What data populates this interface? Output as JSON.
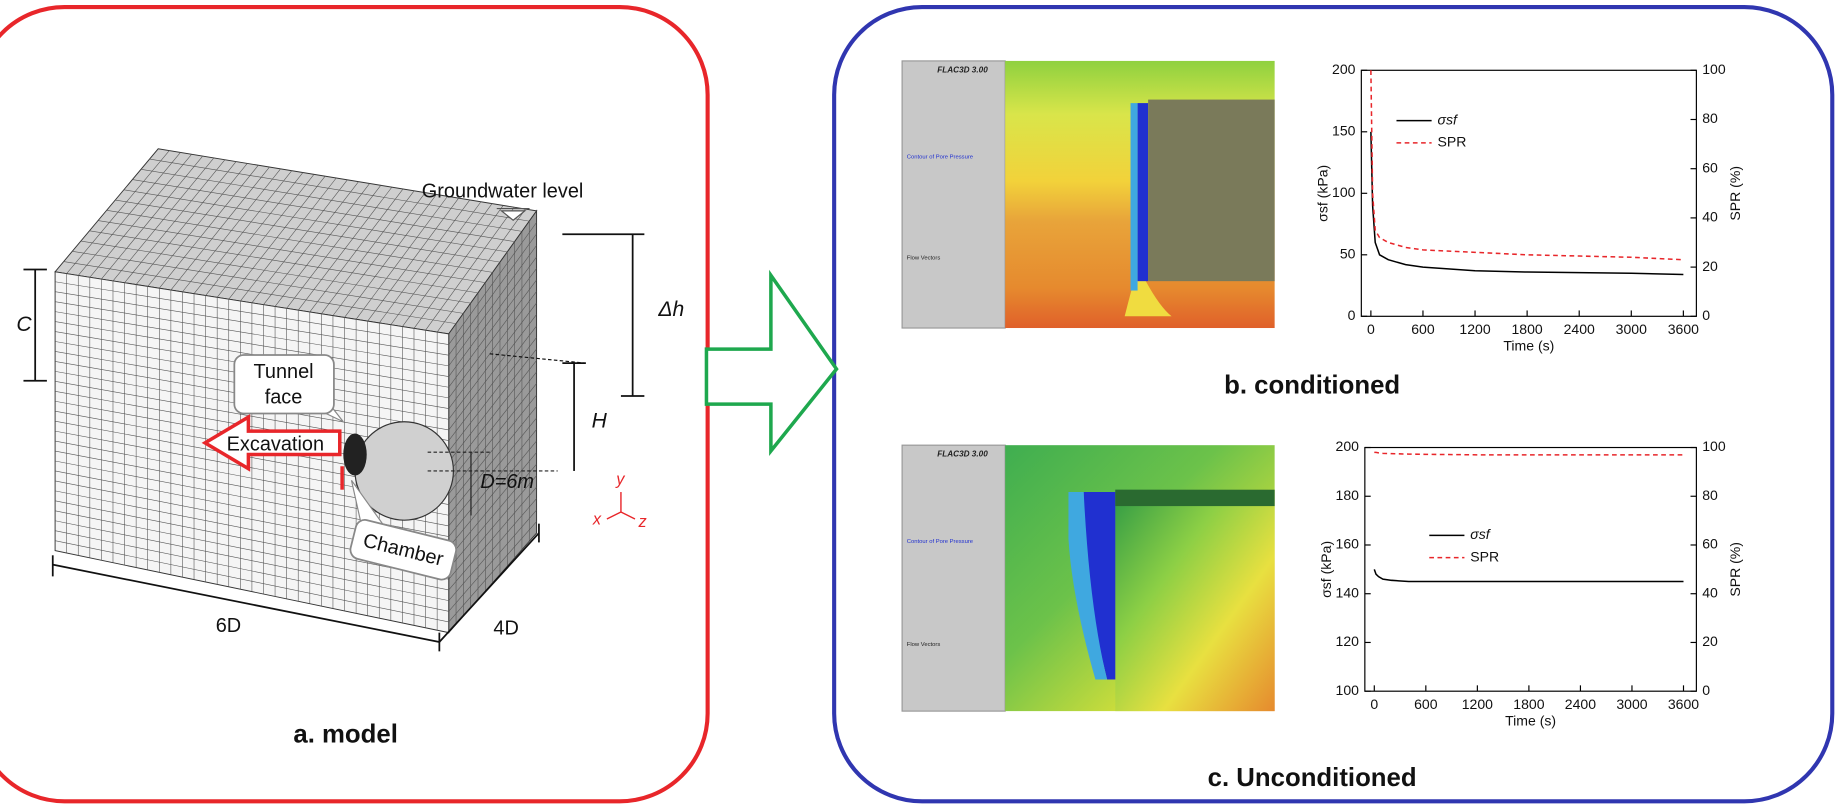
{
  "model": {
    "title": "a. model",
    "groundwater": "Groundwater level",
    "c": "C",
    "dh": "Δh",
    "h": "H",
    "tunnel_face": [
      "Tunnel",
      "face"
    ],
    "excavation": "Excavation",
    "diameter": "D=6m",
    "chamber": "Chamber",
    "width": "6D",
    "depth": "4D",
    "axes": [
      "y",
      "x",
      "z"
    ]
  },
  "simulations": [
    {
      "heading": "FLAC3D 3.00",
      "legend_title": "Contour of Pore Pressure",
      "vectors": "Flow Vectors"
    },
    {
      "heading": "FLAC3D 3.00",
      "legend_title": "Contour of Pore Pressure",
      "vectors": "Flow Vectors"
    }
  ],
  "chart_data": [
    {
      "type": "line",
      "title": "b. conditioned",
      "x_label": "Time (s)",
      "y_label": "σsf (kPa)",
      "y2_label": "SPR (%)",
      "x": [
        0,
        20,
        50,
        100,
        200,
        400,
        600,
        1200,
        1800,
        2400,
        3000,
        3600
      ],
      "xlim": [
        -110,
        3750
      ],
      "xticks": [
        0,
        600,
        1200,
        1800,
        2400,
        3000,
        3600
      ],
      "ylim": [
        0,
        200
      ],
      "yticks": [
        0,
        50,
        100,
        150,
        200
      ],
      "y2lim": [
        0,
        100
      ],
      "y2ticks": [
        0,
        20,
        40,
        60,
        80,
        100
      ],
      "legend": "upper left",
      "series": [
        {
          "name": "σsf",
          "color": "#000000",
          "dash": false,
          "values": [
            150,
            90,
            60,
            50,
            46,
            42,
            40,
            37,
            36,
            35.5,
            35,
            34
          ]
        },
        {
          "name": "SPR",
          "color": "#e8262a",
          "dash": true,
          "axis": "y2",
          "values": [
            100,
            50,
            35,
            32,
            30,
            28,
            27,
            26,
            25,
            24.5,
            24,
            23
          ]
        }
      ]
    },
    {
      "type": "line",
      "title": "c. Unconditioned",
      "x_label": "Time (s)",
      "y_label": "σsf (kPa)",
      "y2_label": "SPR (%)",
      "x": [
        0,
        20,
        50,
        100,
        200,
        400,
        600,
        1200,
        1800,
        2400,
        3000,
        3600
      ],
      "xlim": [
        -110,
        3750
      ],
      "xticks": [
        0,
        600,
        1200,
        1800,
        2400,
        3000,
        3600
      ],
      "ylim": [
        100,
        200
      ],
      "yticks": [
        100,
        120,
        140,
        160,
        180,
        200
      ],
      "y2lim": [
        0,
        100
      ],
      "y2ticks": [
        0,
        20,
        40,
        60,
        80,
        100
      ],
      "legend": "center left",
      "series": [
        {
          "name": "σsf",
          "color": "#000000",
          "dash": false,
          "values": [
            150,
            148,
            147,
            146,
            145.5,
            145,
            145,
            145,
            145,
            145,
            145,
            145
          ]
        },
        {
          "name": "SPR",
          "color": "#e8262a",
          "dash": true,
          "axis": "y2",
          "values": [
            98,
            98,
            97.8,
            97.6,
            97.5,
            97.3,
            97.2,
            97,
            97,
            97,
            97,
            97
          ]
        }
      ]
    }
  ]
}
